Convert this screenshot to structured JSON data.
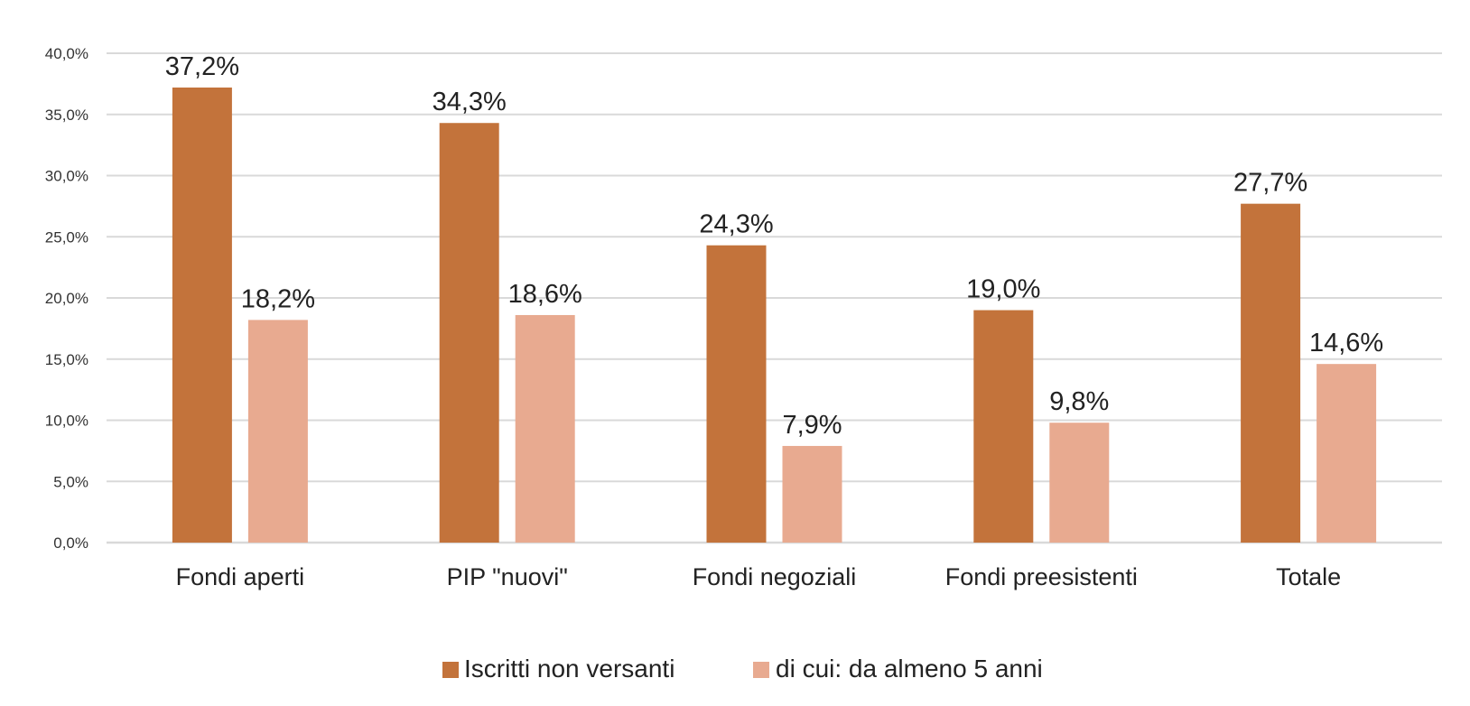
{
  "chart_data": {
    "type": "bar",
    "categories": [
      "Fondi aperti",
      "PIP \"nuovi\"",
      "Fondi negoziali",
      "Fondi preesistenti",
      "Totale"
    ],
    "series": [
      {
        "name": "Iscritti non versanti",
        "color": "#c3733b",
        "values": [
          37.2,
          34.3,
          24.3,
          19.0,
          27.7
        ],
        "labels": [
          "37,2%",
          "34,3%",
          "24,3%",
          "19,0%",
          "27,7%"
        ]
      },
      {
        "name": "di cui: da almeno 5 anni",
        "color": "#e8aa90",
        "values": [
          18.2,
          18.6,
          7.9,
          9.8,
          14.6
        ],
        "labels": [
          "18,2%",
          "18,6%",
          "7,9%",
          "9,8%",
          "14,6%"
        ]
      }
    ],
    "ylim": [
      0,
      40
    ],
    "yticks": [
      "0,0%",
      "5,0%",
      "10,0%",
      "15,0%",
      "20,0%",
      "25,0%",
      "30,0%",
      "35,0%",
      "40,0%"
    ],
    "title": "",
    "xlabel": "",
    "ylabel": "",
    "grid": true,
    "legend": "bottom"
  }
}
